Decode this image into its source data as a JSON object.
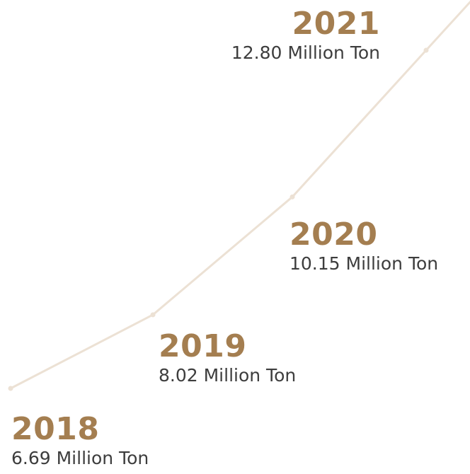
{
  "colors": {
    "accent": "#a47e50",
    "line": "#ece1d4",
    "text": "#3d3d3d"
  },
  "chart_data": {
    "type": "line",
    "title": "",
    "xlabel": "",
    "ylabel": "",
    "categories": [
      "2018",
      "2019",
      "2020",
      "2021"
    ],
    "values": [
      6.69,
      8.02,
      10.15,
      12.8
    ],
    "unit": "Million Ton",
    "grid": false,
    "labels": [
      {
        "year": "2018",
        "value_text": "6.69 Million Ton"
      },
      {
        "year": "2019",
        "value_text": "8.02 Million Ton"
      },
      {
        "year": "2020",
        "value_text": "10.15 Million Ton"
      },
      {
        "year": "2021",
        "value_text": "12.80 Million Ton"
      }
    ]
  }
}
